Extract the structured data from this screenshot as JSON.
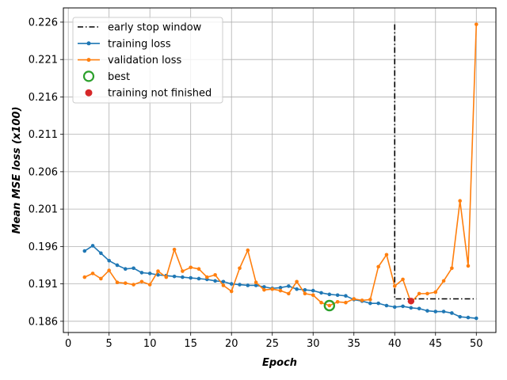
{
  "chart_data": {
    "type": "line",
    "title": "",
    "xlabel": "Epoch",
    "ylabel": "Mean MSE loss (x100)",
    "xlim": [
      -0.6,
      52.4
    ],
    "ylim": [
      0.1845,
      0.2279
    ],
    "xticks": [
      0,
      5,
      10,
      15,
      20,
      25,
      30,
      35,
      40,
      45,
      50
    ],
    "yticks": [
      0.186,
      0.191,
      0.196,
      0.201,
      0.206,
      0.211,
      0.216,
      0.221,
      0.226
    ],
    "grid": true,
    "legend_position": "top-left",
    "colors": {
      "training": "#1f77b4",
      "validation": "#ff7f0e",
      "best": "#2ca02c",
      "not_finished": "#d62728",
      "window": "#000000"
    },
    "series": [
      {
        "name": "training loss",
        "x": [
          2,
          3,
          4,
          5,
          6,
          7,
          8,
          9,
          10,
          11,
          12,
          13,
          14,
          15,
          16,
          17,
          18,
          19,
          20,
          21,
          22,
          23,
          24,
          25,
          26,
          27,
          28,
          29,
          30,
          31,
          32,
          33,
          34,
          35,
          36,
          37,
          38,
          39,
          40,
          41,
          42,
          43,
          44,
          45,
          46,
          47,
          48,
          49,
          50
        ],
        "y": [
          0.1954,
          0.1961,
          0.1951,
          0.1941,
          0.1935,
          0.193,
          0.1931,
          0.1925,
          0.1924,
          0.1922,
          0.1921,
          0.192,
          0.1919,
          0.1918,
          0.1917,
          0.1916,
          0.1914,
          0.1913,
          0.191,
          0.1909,
          0.1908,
          0.1908,
          0.1906,
          0.1904,
          0.1905,
          0.1907,
          0.1903,
          0.1902,
          0.1901,
          0.1898,
          0.1896,
          0.1895,
          0.1894,
          0.1889,
          0.1887,
          0.1884,
          0.1884,
          0.1881,
          0.1879,
          0.188,
          0.1878,
          0.1877,
          0.1874,
          0.1873,
          0.1873,
          0.1871,
          0.1866,
          0.1865,
          0.1864
        ]
      },
      {
        "name": "validation loss",
        "x": [
          2,
          3,
          4,
          5,
          6,
          7,
          8,
          9,
          10,
          11,
          12,
          13,
          14,
          15,
          16,
          17,
          18,
          19,
          20,
          21,
          22,
          23,
          24,
          25,
          26,
          27,
          28,
          29,
          30,
          31,
          32,
          33,
          34,
          35,
          36,
          37,
          38,
          39,
          40,
          41,
          42,
          43,
          44,
          45,
          46,
          47,
          48,
          49,
          50
        ],
        "y": [
          0.1919,
          0.1924,
          0.1917,
          0.1928,
          0.1912,
          0.1911,
          0.1909,
          0.1913,
          0.1909,
          0.1927,
          0.1919,
          0.1956,
          0.1927,
          0.1932,
          0.193,
          0.1919,
          0.1922,
          0.1908,
          0.19,
          0.1931,
          0.1955,
          0.1912,
          0.1902,
          0.1903,
          0.1901,
          0.1897,
          0.1913,
          0.1897,
          0.1895,
          0.1885,
          0.1881,
          0.1886,
          0.1885,
          0.189,
          0.1888,
          0.1889,
          0.1933,
          0.1949,
          0.1907,
          0.1916,
          0.1885,
          0.1897,
          0.1897,
          0.1899,
          0.1914,
          0.1931,
          0.2021,
          0.1934,
          0.2257
        ]
      }
    ],
    "best_point": {
      "name": "best",
      "x": 32,
      "y": 0.1881
    },
    "not_finished_point": {
      "name": "training not finished",
      "x": 42,
      "y": 0.1887
    },
    "early_stop_window": {
      "name": "early stop window",
      "x": [
        40,
        40,
        50
      ],
      "y": [
        0.2257,
        0.189,
        0.189
      ]
    },
    "legend_entries": [
      "early stop window",
      "training loss",
      "validation loss",
      "best",
      "training not finished"
    ]
  }
}
